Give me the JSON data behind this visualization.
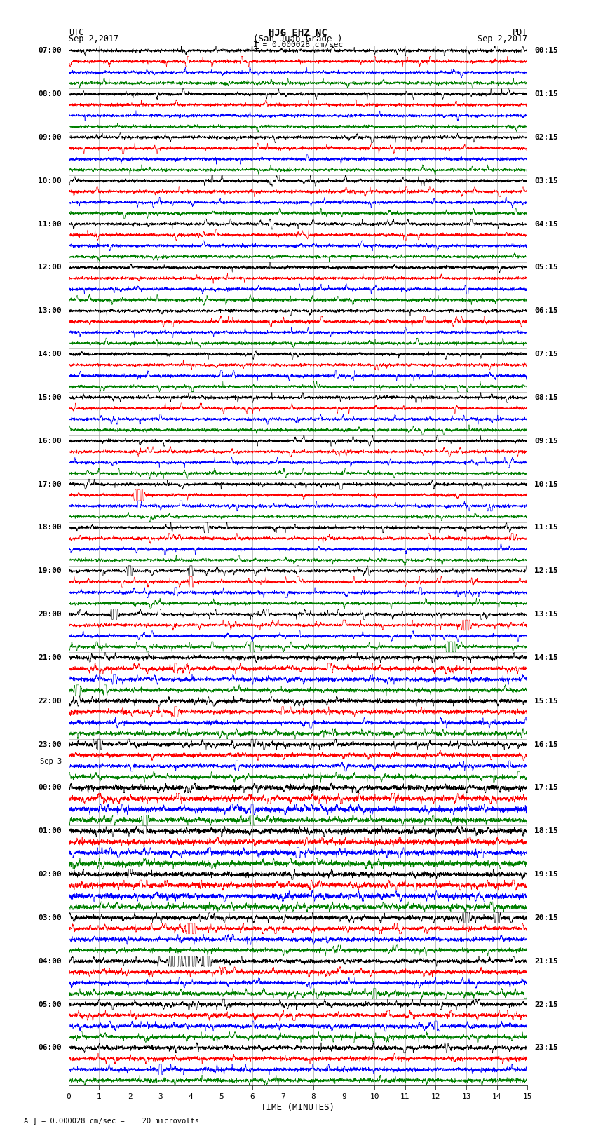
{
  "title_line1": "HJG EHZ NC",
  "title_line2": "(San Juan Grade )",
  "title_line3": "I = 0.000028 cm/sec",
  "left_header_line1": "UTC",
  "left_header_line2": "Sep 2,2017",
  "right_header_line1": "PDT",
  "right_header_line2": "Sep 2,2017",
  "xlabel": "TIME (MINUTES)",
  "footer": "A ] = 0.000028 cm/sec =    20 microvolts",
  "x_ticks": [
    0,
    1,
    2,
    3,
    4,
    5,
    6,
    7,
    8,
    9,
    10,
    11,
    12,
    13,
    14,
    15
  ],
  "left_time_labels": [
    "07:00",
    "08:00",
    "09:00",
    "10:00",
    "11:00",
    "12:00",
    "13:00",
    "14:00",
    "15:00",
    "16:00",
    "17:00",
    "18:00",
    "19:00",
    "20:00",
    "21:00",
    "22:00",
    "23:00",
    "Sep 3",
    "00:00",
    "01:00",
    "02:00",
    "03:00",
    "04:00",
    "05:00",
    "06:00"
  ],
  "right_time_labels": [
    "00:15",
    "01:15",
    "02:15",
    "03:15",
    "04:15",
    "05:15",
    "06:15",
    "07:15",
    "08:15",
    "09:15",
    "10:15",
    "11:15",
    "12:15",
    "13:15",
    "14:15",
    "15:15",
    "16:15",
    "17:15",
    "18:15",
    "19:15",
    "20:15",
    "21:15",
    "22:15",
    "23:15"
  ],
  "num_rows": 24,
  "traces_per_row": 4,
  "trace_colors": [
    "black",
    "red",
    "blue",
    "green"
  ],
  "bg_color": "white",
  "grid_color": "#aaaaaa",
  "seed": 42
}
